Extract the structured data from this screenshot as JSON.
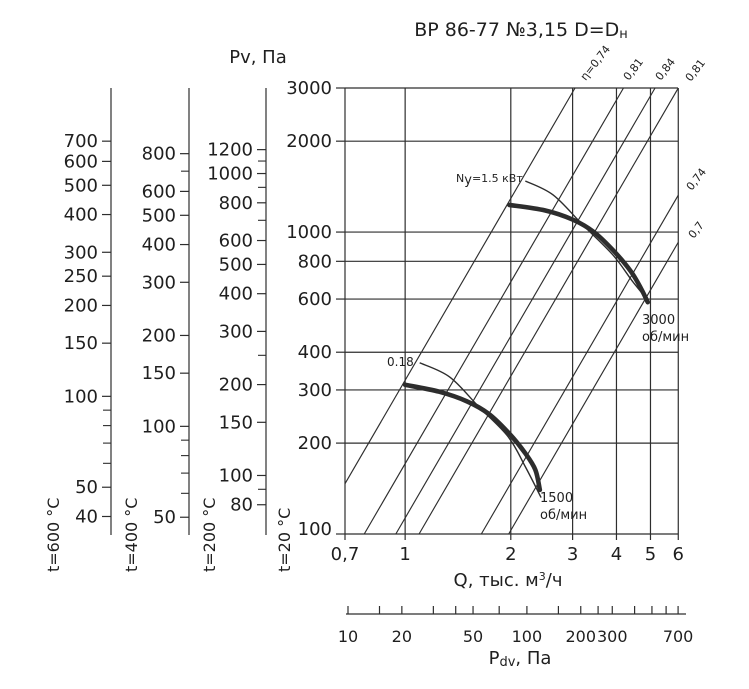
{
  "text": {
    "title_main": "ВР 86-77 №3,15 D=D",
    "title_sub": "н",
    "pv": "Pv, Па",
    "q_pre": "Q, тыс. м",
    "q_sup": "3",
    "q_post": "/ч",
    "pdv_pre": "P",
    "pdv_sub": "dv",
    "pdv_post": ", Па",
    "t600": "t=600 °C",
    "t400": "t=400 °C",
    "t200": "t=200 °C",
    "t20": "t=20 °C",
    "eta1": "η=0,74",
    "eta2": "0,81",
    "eta3": "0,84",
    "eta4": "0,81",
    "eta5": "0,74",
    "eta6": "0,7",
    "rpm3000_l1": "3000",
    "rpm3000_l2": "об/мин",
    "rpm1500_l1": "1500",
    "rpm1500_l2": "об/мин",
    "n_pre": "N",
    "n_sub": "у",
    "n_post": "=1.5 кВт",
    "n018": "0.18"
  },
  "chart_data": {
    "type": "line",
    "title": "ВР 86-77 №3,15 D=Dн",
    "x_axis": {
      "label": "Q, тыс. м³/ч",
      "scale": "log",
      "min": 0.7,
      "max": 6,
      "ticks": [
        0.7,
        1,
        2,
        3,
        4,
        5,
        6
      ],
      "tick_labels": [
        "0,7",
        "1",
        "2",
        "3",
        "4",
        "5",
        "6"
      ]
    },
    "y_axis": {
      "label": "Pv, Па",
      "scale": "log",
      "min": 100,
      "max": 3000,
      "ticks": [
        100,
        200,
        300,
        400,
        600,
        800,
        1000,
        2000,
        3000
      ],
      "tick_labels": [
        "100",
        "200",
        "300",
        "400",
        "600",
        "800",
        "1000",
        "2000",
        "3000"
      ]
    },
    "temperature_axes": [
      {
        "label": "t=600 °C",
        "density_ratio": 0.35,
        "labeled_ticks": [
          700,
          600,
          500,
          400,
          300,
          250,
          200,
          150,
          100,
          50,
          40
        ],
        "minor_ticks": [
          90,
          80,
          70,
          60
        ]
      },
      {
        "label": "t=400 °C",
        "density_ratio": 0.44,
        "labeled_ticks": [
          800,
          600,
          500,
          400,
          300,
          200,
          150,
          100,
          50
        ],
        "minor_ticks": [
          700,
          90,
          80,
          70,
          60
        ]
      },
      {
        "label": "t=200 °C",
        "density_ratio": 0.64,
        "labeled_ticks": [
          1200,
          1000,
          800,
          600,
          500,
          400,
          300,
          200,
          150,
          100,
          80
        ],
        "minor_ticks": [
          1100,
          900,
          700,
          250,
          90
        ]
      },
      {
        "label": "t=20 °C",
        "density_ratio": 1
      }
    ],
    "pdv_axis": {
      "label": "Pdv, Па",
      "scale": "log",
      "labeled_ticks": [
        10,
        20,
        50,
        100,
        200,
        300,
        700
      ],
      "all_ticks": [
        10,
        15,
        20,
        30,
        40,
        50,
        70,
        100,
        150,
        200,
        250,
        300,
        400,
        500,
        600,
        700
      ]
    },
    "efficiency_lines": [
      {
        "label": "η=0,74",
        "k": 323
      },
      {
        "label": "0,81",
        "k": 171
      },
      {
        "label": "0,84",
        "k": 113
      },
      {
        "label": "0,81",
        "k": 83.3
      },
      {
        "label": "0,74",
        "k": 36.8
      },
      {
        "label": "0,7",
        "k": 25.7
      }
    ],
    "fan_curves": [
      {
        "label": "3000 об/мин",
        "rpm": 3000,
        "points_q_pv": [
          [
            1.98,
            1230
          ],
          [
            2.5,
            1180
          ],
          [
            3.0,
            1100
          ],
          [
            3.45,
            1000
          ],
          [
            3.95,
            860
          ],
          [
            4.4,
            740
          ],
          [
            4.7,
            650
          ],
          [
            4.91,
            586
          ]
        ]
      },
      {
        "label": "1500 об/мин",
        "rpm": 1500,
        "points_q_pv": [
          [
            1.0,
            312
          ],
          [
            1.25,
            296
          ],
          [
            1.5,
            275
          ],
          [
            1.73,
            250
          ],
          [
            1.98,
            215
          ],
          [
            2.2,
            185
          ],
          [
            2.35,
            163
          ],
          [
            2.42,
            140
          ]
        ]
      }
    ],
    "power_curves": [
      {
        "label": "Nу=1.5 кВт",
        "points_q_pv": [
          [
            2.2,
            1476
          ],
          [
            2.64,
            1327
          ],
          [
            3.21,
            1055
          ],
          [
            3.91,
            839
          ],
          [
            4.46,
            683
          ],
          [
            4.99,
            582
          ]
        ]
      },
      {
        "label": "0.18",
        "points_q_pv": [
          [
            1.1,
            369
          ],
          [
            1.34,
            331
          ],
          [
            1.62,
            264
          ],
          [
            1.965,
            210
          ],
          [
            2.2,
            167
          ],
          [
            2.44,
            132
          ]
        ]
      }
    ]
  }
}
